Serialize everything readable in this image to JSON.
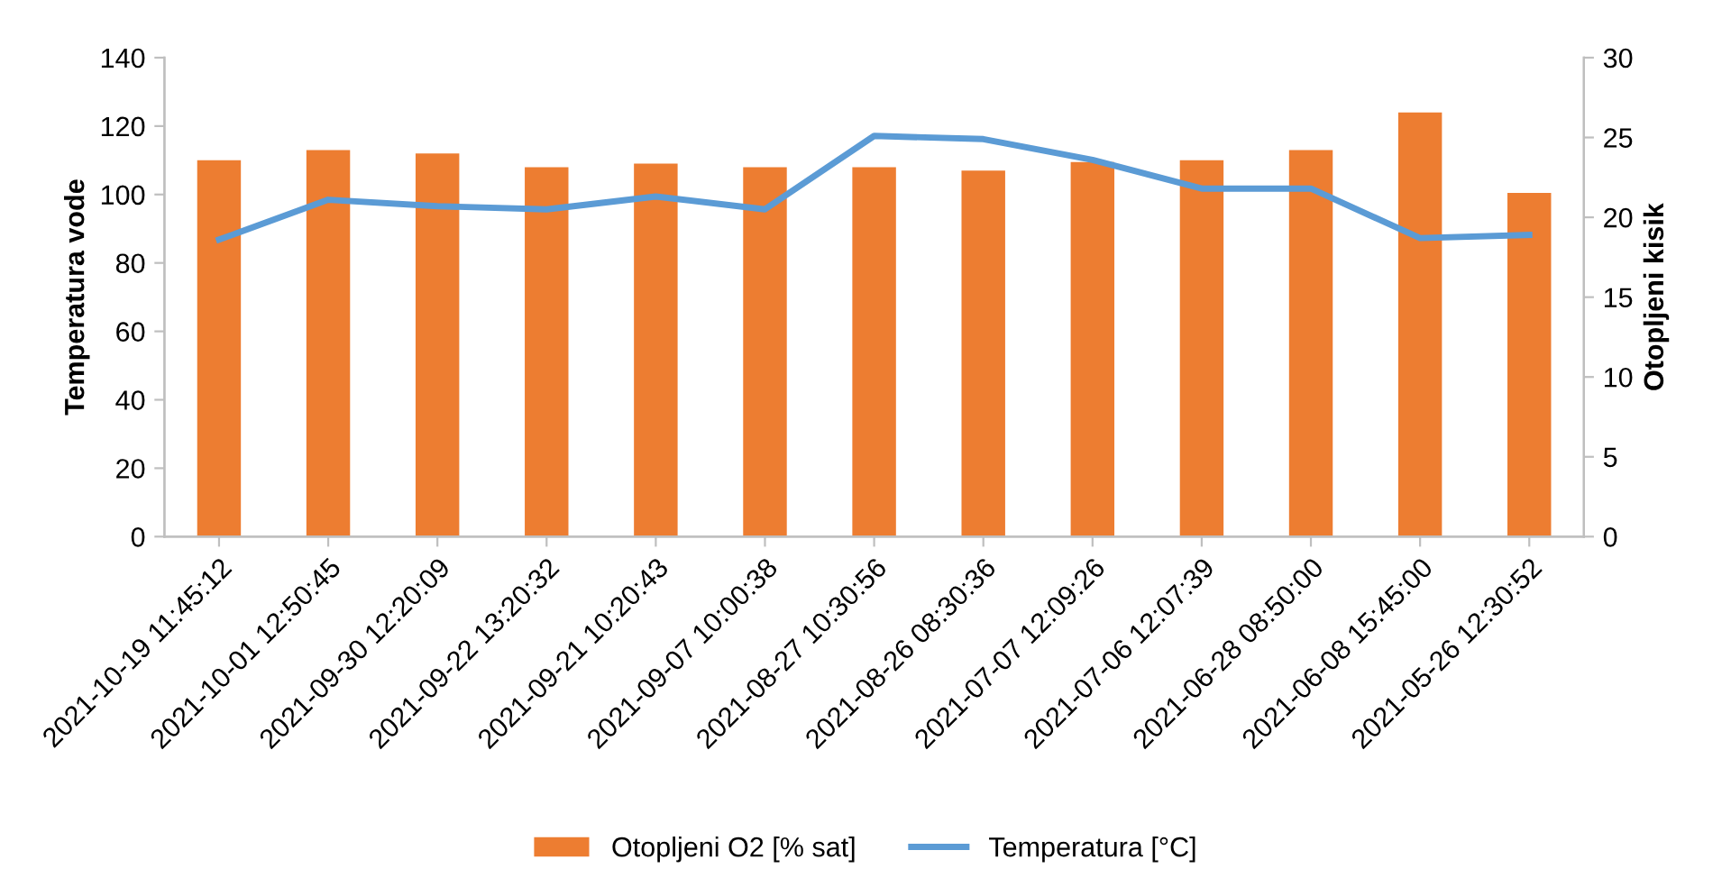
{
  "chart_data": {
    "type": "bar",
    "ylabel": "Temperatura vode",
    "y2label": "Otopljeni kisik",
    "categories": [
      "2021-10-19 11:45:12",
      "2021-10-01 12:50:45",
      "2021-09-30 12:20:09",
      "2021-09-22 13:20:32",
      "2021-09-21 10:20:43",
      "2021-09-07 10:00:38",
      "2021-08-27 10:30:56",
      "2021-08-26 08:30:36",
      "2021-07-07 12:09:26",
      "2021-07-06 12:07:39",
      "2021-06-28 08:50:00",
      "2021-06-08 15:45:00",
      "2021-05-26 12:30:52"
    ],
    "series": [
      {
        "name": "Otopljeni O2 [% sat]",
        "color": "#ed7d31",
        "values": [
          110,
          113,
          112,
          108,
          109,
          108,
          108,
          107,
          109.5,
          110,
          113,
          124,
          100.5
        ]
      },
      {
        "name": "Temperatura [°C]",
        "type": "line",
        "axis": "y2",
        "color": "#5b9bd5",
        "values": [
          18.6,
          21.1,
          20.7,
          20.5,
          21.3,
          20.5,
          25.1,
          24.9,
          23.6,
          21.8,
          21.8,
          18.7,
          18.9
        ]
      }
    ],
    "ylim": [
      0,
      140
    ],
    "yticks": [
      0,
      20,
      40,
      60,
      80,
      100,
      120,
      140
    ],
    "y2lim": [
      0,
      30
    ],
    "y2ticks": [
      0,
      5,
      10,
      15,
      20,
      25,
      30
    ],
    "grid": false,
    "legend": "bottom",
    "marker": "none"
  }
}
